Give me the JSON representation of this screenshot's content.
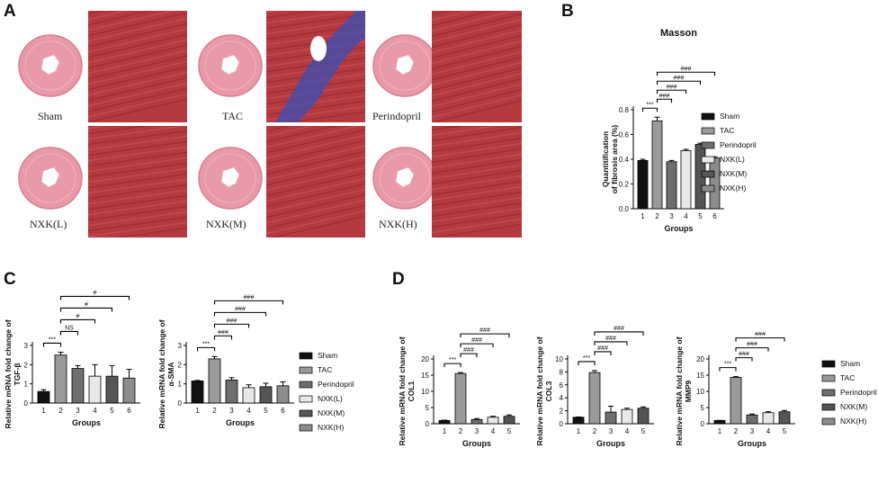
{
  "panels": {
    "a": "A",
    "b": "B",
    "c": "C",
    "d": "D"
  },
  "histology": [
    {
      "label": "Sham"
    },
    {
      "label": "TAC"
    },
    {
      "label": "Perindopril"
    },
    {
      "label": "NXK(L)"
    },
    {
      "label": "NXK(M)"
    },
    {
      "label": "NXK(H)"
    }
  ],
  "colors": {
    "myocardium": "#b43a40",
    "collagen": "#3a4fb5",
    "heart_tissue": "#e89aa8",
    "bar_shades": [
      "#111111",
      "#9a9a9a",
      "#6e6e6e",
      "#e8e8e8",
      "#555555",
      "#8c8c8c"
    ]
  },
  "chart_data": [
    {
      "id": "masson",
      "type": "bar",
      "title": "Masson",
      "xlabel": "Groups",
      "ylabel": "Quantitification of fibrosis area (%)",
      "categories": [
        "1",
        "2",
        "3",
        "4",
        "5",
        "6"
      ],
      "values": [
        0.39,
        0.71,
        0.38,
        0.47,
        0.52,
        0.41
      ],
      "errors": [
        0.01,
        0.03,
        0.01,
        0.01,
        0.01,
        0.01
      ],
      "ylim": [
        0,
        0.8
      ],
      "yticks": [
        "0.0",
        "0.2",
        "0.4",
        "0.6",
        "0.8"
      ],
      "significance": [
        "***",
        "###",
        "###",
        "###",
        "###"
      ],
      "legend": [
        "Sham",
        "TAC",
        "Perindopril",
        "NXK(L)",
        "NXK(M)",
        "NXK(H)"
      ]
    },
    {
      "id": "tgf",
      "type": "bar",
      "xlabel": "Groups",
      "ylabel": "Relative mRNA fold change of TGF-β",
      "categories": [
        "1",
        "2",
        "3",
        "4",
        "5",
        "6"
      ],
      "values": [
        0.6,
        2.5,
        1.8,
        1.4,
        1.4,
        1.3
      ],
      "errors": [
        0.1,
        0.15,
        0.15,
        0.6,
        0.55,
        0.45
      ],
      "ylim": [
        0,
        3
      ],
      "yticks": [
        "0",
        "1",
        "2",
        "3"
      ],
      "significance": [
        "***",
        "NS",
        "#",
        "#",
        "#"
      ]
    },
    {
      "id": "asma",
      "type": "bar",
      "xlabel": "Groups",
      "ylabel": "Relative mRNA fold change of α-SMA",
      "categories": [
        "1",
        "2",
        "3",
        "4",
        "5",
        "6"
      ],
      "values": [
        1.15,
        2.3,
        1.2,
        0.8,
        0.85,
        0.9
      ],
      "errors": [
        0.03,
        0.12,
        0.12,
        0.15,
        0.18,
        0.2
      ],
      "ylim": [
        0,
        3
      ],
      "yticks": [
        "0",
        "1",
        "2",
        "3"
      ],
      "significance": [
        "***",
        "###",
        "###",
        "###",
        "###"
      ],
      "legend": [
        "Sham",
        "TAC",
        "Perindopril",
        "NXK(L)",
        "NXK(M)",
        "NXK(H)"
      ]
    },
    {
      "id": "col1",
      "type": "bar",
      "xlabel": "Groups",
      "ylabel": "Relative mRNA fold change of COL1",
      "categories": [
        "1",
        "2",
        "3",
        "4",
        "5"
      ],
      "values": [
        1.0,
        15.5,
        1.3,
        2.0,
        2.3
      ],
      "errors": [
        0.1,
        0.3,
        0.3,
        0.3,
        0.4
      ],
      "ylim": [
        0,
        20
      ],
      "yticks": [
        "0",
        "5",
        "10",
        "15",
        "20"
      ],
      "significance": [
        "***",
        "###",
        "###",
        "###"
      ]
    },
    {
      "id": "col3",
      "type": "bar",
      "xlabel": "Groups",
      "ylabel": "Relative mRNA fold change of COL3",
      "categories": [
        "1",
        "2",
        "3",
        "4",
        "5"
      ],
      "values": [
        1.0,
        7.9,
        1.8,
        2.2,
        2.4
      ],
      "errors": [
        0.05,
        0.3,
        0.9,
        0.2,
        0.2
      ],
      "ylim": [
        0,
        10
      ],
      "yticks": [
        "0",
        "2",
        "4",
        "6",
        "8",
        "10"
      ],
      "significance": [
        "***",
        "###",
        "###",
        "###"
      ]
    },
    {
      "id": "mmp9",
      "type": "bar",
      "xlabel": "Groups",
      "ylabel": "Relative mRNA fold change of MMP9",
      "categories": [
        "1",
        "2",
        "3",
        "4",
        "5"
      ],
      "values": [
        1.0,
        14.3,
        2.7,
        3.4,
        3.7
      ],
      "errors": [
        0.05,
        0.25,
        0.3,
        0.3,
        0.4
      ],
      "ylim": [
        0,
        20
      ],
      "yticks": [
        "0",
        "5",
        "10",
        "15",
        "20"
      ],
      "significance": [
        "***",
        "###",
        "###",
        "###"
      ],
      "legend": [
        "Sham",
        "TAC",
        "Perindopril",
        "NXK(M)",
        "NXK(H)"
      ]
    }
  ]
}
